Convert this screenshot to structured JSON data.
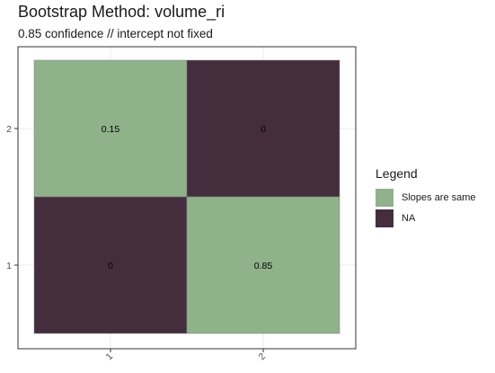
{
  "chart_data": {
    "type": "heatmap",
    "title": "Bootstrap Method: volume_ri",
    "subtitle": "0.85 confidence // intercept not fixed",
    "x_categories": [
      "1",
      "2"
    ],
    "y_categories": [
      "1",
      "2"
    ],
    "cells": [
      {
        "x": "1",
        "y": "2",
        "value": "0.15",
        "fill": "Slopes are same"
      },
      {
        "x": "2",
        "y": "2",
        "value": "0",
        "fill": "NA"
      },
      {
        "x": "1",
        "y": "1",
        "value": "0",
        "fill": "NA"
      },
      {
        "x": "2",
        "y": "1",
        "value": "0.85",
        "fill": "Slopes are same"
      }
    ],
    "legend": {
      "title": "Legend",
      "position": "right",
      "entries": [
        {
          "label": "Slopes are same",
          "color": "#8fb28a"
        },
        {
          "label": "NA",
          "color": "#442e3d"
        }
      ]
    },
    "grid": true
  }
}
